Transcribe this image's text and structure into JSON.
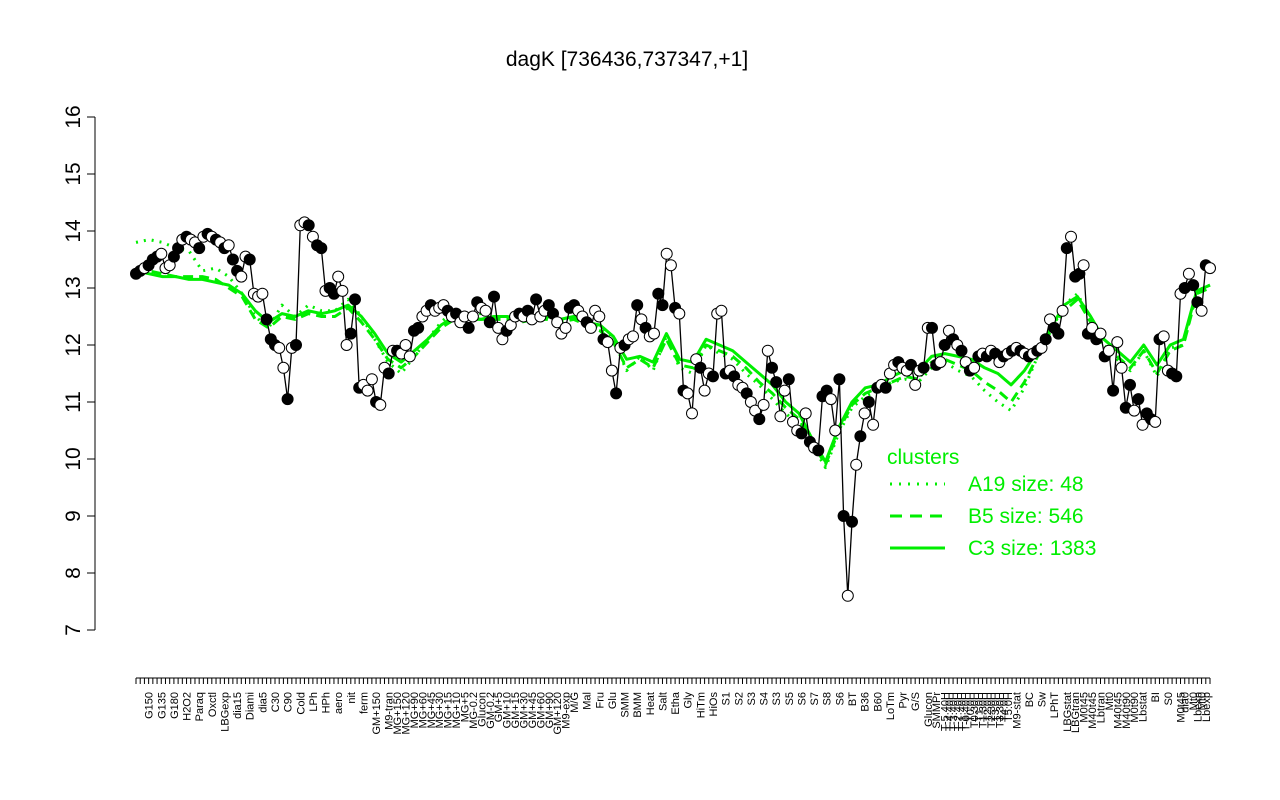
{
  "chart_data": {
    "type": "line",
    "title": "dagK [736436,737347,+1]",
    "xlabel": "",
    "ylabel": "",
    "ylim": [
      7,
      16
    ],
    "yticks": [
      7,
      8,
      9,
      10,
      11,
      12,
      13,
      14,
      15,
      16
    ],
    "x_tick_labels": [
      {
        "label": "G150",
        "i": 3
      },
      {
        "label": "G135",
        "i": 6
      },
      {
        "label": "G180",
        "i": 9
      },
      {
        "label": "H2O2",
        "i": 12
      },
      {
        "label": "Paraq",
        "i": 15
      },
      {
        "label": "Oxctl",
        "i": 18
      },
      {
        "label": "LBGexp",
        "i": 21
      },
      {
        "label": "dia15",
        "i": 24
      },
      {
        "label": "Diami",
        "i": 27
      },
      {
        "label": "dia5",
        "i": 30
      },
      {
        "label": "C30",
        "i": 33
      },
      {
        "label": "C90",
        "i": 36
      },
      {
        "label": "Cold",
        "i": 39
      },
      {
        "label": "LPh",
        "i": 42
      },
      {
        "label": "HPh",
        "i": 45
      },
      {
        "label": "aero",
        "i": 48
      },
      {
        "label": "nit",
        "i": 51
      },
      {
        "label": "ferm",
        "i": 54
      },
      {
        "label": "GM+150",
        "i": 57
      },
      {
        "label": "M9-tran",
        "i": 60
      },
      {
        "label": "MG+150",
        "i": 62
      },
      {
        "label": "MG+120",
        "i": 64
      },
      {
        "label": "MG+90",
        "i": 66
      },
      {
        "label": "MG+60",
        "i": 68
      },
      {
        "label": "MG+45",
        "i": 70
      },
      {
        "label": "MG+30",
        "i": 72
      },
      {
        "label": "MG+15",
        "i": 74
      },
      {
        "label": "MG+10",
        "i": 76
      },
      {
        "label": "MG+5",
        "i": 78
      },
      {
        "label": "MG-0.2",
        "i": 80
      },
      {
        "label": "Glucon",
        "i": 82
      },
      {
        "label": "GM-0.2",
        "i": 84
      },
      {
        "label": "GM+5",
        "i": 86
      },
      {
        "label": "GM+10",
        "i": 88
      },
      {
        "label": "GM+15",
        "i": 90
      },
      {
        "label": "GM+30",
        "i": 92
      },
      {
        "label": "GM+45",
        "i": 94
      },
      {
        "label": "GM+60",
        "i": 96
      },
      {
        "label": "GM+90",
        "i": 98
      },
      {
        "label": "GM+120",
        "i": 100
      },
      {
        "label": "M9-exp",
        "i": 102
      },
      {
        "label": "M/G",
        "i": 104
      },
      {
        "label": "Mal",
        "i": 107
      },
      {
        "label": "Fru",
        "i": 110
      },
      {
        "label": "Glu",
        "i": 113
      },
      {
        "label": "SMM",
        "i": 116
      },
      {
        "label": "BMM",
        "i": 119
      },
      {
        "label": "Heat",
        "i": 122
      },
      {
        "label": "Salt",
        "i": 125
      },
      {
        "label": "Etha",
        "i": 128
      },
      {
        "label": "Gly",
        "i": 131
      },
      {
        "label": "HiTm",
        "i": 134
      },
      {
        "label": "HiOs",
        "i": 137
      },
      {
        "label": "S1",
        "i": 140
      },
      {
        "label": "S2",
        "i": 143
      },
      {
        "label": "S3",
        "i": 146
      },
      {
        "label": "S4",
        "i": 149
      },
      {
        "label": "S3",
        "i": 152
      },
      {
        "label": "S5",
        "i": 155
      },
      {
        "label": "S6",
        "i": 158
      },
      {
        "label": "S7",
        "i": 161
      },
      {
        "label": "S8",
        "i": 164
      },
      {
        "label": "S6",
        "i": 167
      },
      {
        "label": "BT",
        "i": 170
      },
      {
        "label": "B36",
        "i": 173
      },
      {
        "label": "B60",
        "i": 176
      },
      {
        "label": "LoTm",
        "i": 179
      },
      {
        "label": "Pyr",
        "i": 182
      },
      {
        "label": "G/S",
        "i": 185
      },
      {
        "label": "Glucon",
        "i": 188
      },
      {
        "label": "SMMPr",
        "i": 190
      },
      {
        "label": "T-5.40H",
        "i": 192
      },
      {
        "label": "T-4.40H",
        "i": 193
      },
      {
        "label": "T-3.40H",
        "i": 194
      },
      {
        "label": "T-2.40H",
        "i": 195
      },
      {
        "label": "T-1.40H",
        "i": 196
      },
      {
        "label": "T-0.40H",
        "i": 197
      },
      {
        "label": "T0.0H",
        "i": 198
      },
      {
        "label": "T0.30H",
        "i": 199
      },
      {
        "label": "T1.0H",
        "i": 200
      },
      {
        "label": "T1.30H",
        "i": 201
      },
      {
        "label": "T2.0H",
        "i": 202
      },
      {
        "label": "T2.30H",
        "i": 203
      },
      {
        "label": "T3.0H",
        "i": 204
      },
      {
        "label": "T3.30H",
        "i": 205
      },
      {
        "label": "T4.0H",
        "i": 206
      },
      {
        "label": "T5.0H",
        "i": 207
      },
      {
        "label": "M9-stat",
        "i": 209
      },
      {
        "label": "BC",
        "i": 212
      },
      {
        "label": "Sw",
        "i": 215
      },
      {
        "label": "LPhT",
        "i": 218
      },
      {
        "label": "LBGstat",
        "i": 221
      },
      {
        "label": "LBGtran",
        "i": 223
      },
      {
        "label": "M0t45",
        "i": 225
      },
      {
        "label": "M40t45",
        "i": 227
      },
      {
        "label": "Lbtran",
        "i": 229
      },
      {
        "label": "Mt0",
        "i": 231
      },
      {
        "label": "M40t45",
        "i": 233
      },
      {
        "label": "M40t90",
        "i": 235
      },
      {
        "label": "M0t90",
        "i": 237
      },
      {
        "label": "Lbstat",
        "i": 239
      },
      {
        "label": "BI",
        "i": 242
      },
      {
        "label": "S0",
        "i": 245
      },
      {
        "label": "M0t45",
        "i": 248
      },
      {
        "label": "dia0",
        "i": 249
      },
      {
        "label": "Mt0",
        "i": 251
      },
      {
        "label": "Lbexp",
        "i": 252
      },
      {
        "label": "Mt0",
        "i": 253
      },
      {
        "label": "Lbexp",
        "i": 254
      }
    ],
    "n_points": 256,
    "expression_values": [
      13.25,
      13.3,
      13.35,
      13.4,
      13.5,
      13.55,
      13.6,
      13.35,
      13.4,
      13.55,
      13.7,
      13.85,
      13.9,
      13.85,
      13.8,
      13.7,
      13.9,
      13.95,
      13.9,
      13.85,
      13.8,
      13.7,
      13.75,
      13.5,
      13.3,
      13.2,
      13.55,
      13.5,
      12.9,
      12.85,
      12.9,
      12.45,
      12.1,
      12.0,
      11.95,
      11.6,
      11.05,
      11.95,
      12.0,
      14.1,
      14.15,
      14.1,
      13.9,
      13.75,
      13.7,
      12.95,
      13.0,
      12.9,
      13.2,
      12.95,
      12.0,
      12.2,
      12.8,
      11.25,
      11.3,
      11.2,
      11.4,
      11.0,
      10.95,
      11.6,
      11.5,
      11.9,
      11.9,
      11.85,
      12.0,
      11.8,
      12.25,
      12.3,
      12.5,
      12.6,
      12.7,
      12.6,
      12.65,
      12.7,
      12.6,
      12.5,
      12.55,
      12.4,
      12.5,
      12.3,
      12.5,
      12.75,
      12.65,
      12.6,
      12.4,
      12.85,
      12.3,
      12.1,
      12.25,
      12.35,
      12.5,
      12.55,
      12.5,
      12.6,
      12.45,
      12.8,
      12.5,
      12.6,
      12.7,
      12.55,
      12.4,
      12.2,
      12.3,
      12.65,
      12.7,
      12.6,
      12.5,
      12.4,
      12.3,
      12.6,
      12.5,
      12.1,
      12.05,
      11.55,
      11.15,
      11.95,
      12.0,
      12.1,
      12.15,
      12.7,
      12.45,
      12.3,
      12.15,
      12.2,
      12.9,
      12.7,
      13.6,
      13.4,
      12.65,
      12.55,
      11.2,
      11.15,
      10.8,
      11.75,
      11.6,
      11.2,
      11.5,
      11.45,
      12.55,
      12.6,
      11.5,
      11.55,
      11.45,
      11.3,
      11.25,
      11.15,
      11.0,
      10.85,
      10.7,
      10.95,
      11.9,
      11.6,
      11.35,
      10.75,
      11.2,
      11.4,
      10.65,
      10.5,
      10.45,
      10.8,
      10.3,
      10.2,
      10.15,
      11.1,
      11.2,
      11.05,
      10.5,
      11.4,
      9.0,
      7.6,
      8.9,
      9.9,
      10.4,
      10.8,
      11.0,
      10.6,
      11.25,
      11.3,
      11.25,
      11.5,
      11.65,
      11.7,
      11.6,
      11.55,
      11.65,
      11.3,
      11.55,
      11.6,
      12.3,
      12.3,
      11.65,
      11.7,
      12.0,
      12.25,
      12.1,
      12.0,
      11.9,
      11.7,
      11.55,
      11.6,
      11.8,
      11.85,
      11.8,
      11.9,
      11.85,
      11.7,
      11.8,
      11.85,
      11.9,
      11.95,
      11.9,
      11.85,
      11.8,
      11.85,
      11.9,
      11.95,
      12.1,
      12.45,
      12.3,
      12.2,
      12.6,
      13.7,
      13.9,
      13.2,
      13.25,
      13.4,
      12.2,
      12.3,
      12.1,
      12.2,
      11.8,
      11.9,
      11.2,
      12.05,
      11.6,
      10.9,
      11.3,
      10.85,
      11.05,
      10.6,
      10.8,
      10.7,
      10.65,
      12.1,
      12.15,
      11.55,
      11.5,
      11.45,
      12.9,
      13.0,
      13.25,
      13.05,
      12.75,
      12.6,
      13.4,
      13.35
    ],
    "filled_points": [
      0,
      1,
      3,
      4,
      5,
      9,
      10,
      12,
      15,
      17,
      19,
      21,
      23,
      24,
      27,
      31,
      32,
      33,
      36,
      38,
      41,
      43,
      44,
      46,
      47,
      51,
      52,
      53,
      57,
      60,
      62,
      66,
      67,
      70,
      74,
      76,
      79,
      81,
      84,
      85,
      88,
      91,
      93,
      95,
      98,
      99,
      103,
      104,
      107,
      111,
      114,
      116,
      119,
      121,
      124,
      125,
      128,
      130,
      134,
      137,
      140,
      142,
      145,
      148,
      151,
      152,
      155,
      158,
      160,
      162,
      163,
      164,
      167,
      168,
      170,
      172,
      174,
      176,
      178,
      181,
      184,
      187,
      189,
      190,
      192,
      194,
      196,
      198,
      200,
      202,
      204,
      206,
      208,
      210,
      212,
      214,
      216,
      218,
      219,
      221,
      223,
      224,
      226,
      228,
      230,
      232,
      235,
      236,
      238,
      240,
      241,
      243,
      246,
      247,
      249,
      251,
      252,
      254
    ],
    "series": [
      {
        "name": "A19 size: 48",
        "style": "dotted",
        "color": "#00ee00"
      },
      {
        "name": "B5 size: 546",
        "style": "dashed",
        "color": "#00ee00"
      },
      {
        "name": "C3 size: 1383",
        "style": "solid",
        "color": "#00ee00"
      }
    ],
    "cluster_lines": {
      "C3": [
        13.3,
        13.25,
        13.2,
        13.2,
        13.15,
        13.15,
        13.1,
        13.05,
        12.9,
        12.6,
        12.4,
        12.55,
        12.5,
        12.6,
        12.55,
        12.6,
        12.7,
        12.5,
        12.2,
        11.85,
        11.7,
        11.9,
        12.1,
        12.35,
        12.5,
        12.5,
        12.45,
        12.5,
        12.5,
        12.45,
        12.5,
        12.5,
        12.45,
        12.5,
        12.4,
        12.35,
        12.15,
        11.75,
        11.8,
        11.7,
        12.2,
        11.75,
        11.7,
        12.1,
        12.0,
        11.9,
        11.7,
        11.5,
        11.3,
        11.0,
        10.8,
        10.35,
        9.95,
        10.55,
        11.0,
        11.25,
        11.3,
        11.45,
        11.55,
        11.55,
        11.8,
        11.85,
        11.8,
        11.75,
        11.6,
        11.5,
        11.3,
        11.55,
        11.9,
        12.3,
        12.7,
        12.85,
        12.5,
        12.1,
        11.9,
        11.7,
        12.0,
        11.65,
        12.0,
        12.1,
        12.95,
        13.05
      ],
      "B5": [
        13.35,
        13.3,
        13.25,
        13.2,
        13.2,
        13.2,
        13.15,
        13.0,
        12.85,
        12.45,
        12.3,
        12.5,
        12.45,
        12.55,
        12.5,
        12.5,
        12.65,
        12.4,
        12.1,
        11.75,
        11.6,
        11.8,
        12.05,
        12.3,
        12.45,
        12.45,
        12.45,
        12.45,
        12.45,
        12.4,
        12.45,
        12.45,
        12.4,
        12.45,
        12.35,
        12.25,
        12.05,
        11.6,
        11.75,
        11.6,
        12.1,
        11.65,
        11.6,
        12.0,
        11.9,
        11.8,
        11.6,
        11.35,
        11.15,
        10.9,
        10.7,
        10.3,
        9.9,
        10.5,
        10.95,
        11.15,
        11.25,
        11.35,
        11.45,
        11.4,
        11.7,
        11.75,
        11.65,
        11.55,
        11.35,
        11.2,
        11.0,
        11.35,
        11.8,
        12.2,
        12.6,
        12.8,
        12.4,
        12.0,
        11.8,
        11.6,
        11.9,
        11.5,
        11.9,
        12.0,
        12.9,
        13.0
      ],
      "A19": [
        13.8,
        13.85,
        13.8,
        13.7,
        13.65,
        13.3,
        13.35,
        13.2,
        12.9,
        12.5,
        12.3,
        12.7,
        12.5,
        12.7,
        12.6,
        12.6,
        12.8,
        12.5,
        12.1,
        11.7,
        11.5,
        11.8,
        12.1,
        12.4,
        12.6,
        12.55,
        12.55,
        12.5,
        12.5,
        12.45,
        12.5,
        12.5,
        12.45,
        12.5,
        12.4,
        12.3,
        12.1,
        11.55,
        11.8,
        11.55,
        12.15,
        11.6,
        11.5,
        12.0,
        11.85,
        11.75,
        11.5,
        11.3,
        11.05,
        10.8,
        10.6,
        10.25,
        9.85,
        10.45,
        10.9,
        11.1,
        11.2,
        11.35,
        11.4,
        11.35,
        11.6,
        11.7,
        11.55,
        11.45,
        11.2,
        11.0,
        10.85,
        11.25,
        11.8,
        12.25,
        12.7,
        12.9,
        12.45,
        11.95,
        11.75,
        11.55,
        11.9,
        11.45,
        11.95,
        12.0,
        12.95,
        13.05
      ]
    },
    "legend": {
      "title": "clusters",
      "position": "right"
    },
    "grid": false
  }
}
